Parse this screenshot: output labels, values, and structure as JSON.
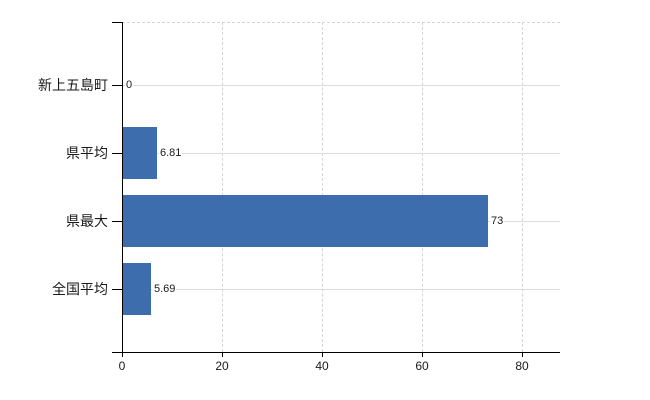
{
  "chart_data": {
    "type": "bar",
    "orientation": "horizontal",
    "categories": [
      "新上五島町",
      "県平均",
      "県最大",
      "全国平均"
    ],
    "values": [
      0,
      6.81,
      73,
      5.69
    ],
    "value_labels": [
      "0",
      "6.81",
      "73",
      "5.69"
    ],
    "x_ticks": [
      "0",
      "20",
      "40",
      "60",
      "80"
    ],
    "x_tick_values": [
      0,
      20,
      40,
      60,
      80
    ],
    "xlim": [
      0,
      87.6
    ],
    "grid": "dashed vertical gridlines at each x tick; solid light horizontal gridline through each category; dashed light top border",
    "legend_position": "none",
    "colors": {
      "bar": "#3e6dae",
      "axis": "#000000",
      "gridline": "#d4d4d4",
      "category_gridline": "#dcdcdc",
      "text": "#1a1a1a",
      "background": "#ffffff"
    }
  }
}
